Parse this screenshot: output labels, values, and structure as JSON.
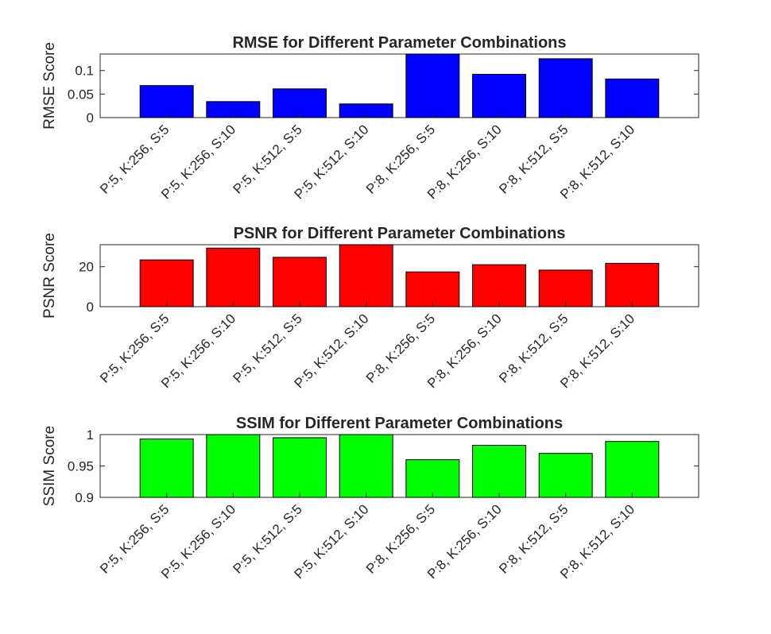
{
  "chart_data": [
    {
      "type": "bar",
      "title": "RMSE for Different Parameter Combinations",
      "xlabel": "",
      "ylabel": "RMSE Score",
      "categories": [
        "P:5, K:256, S:5",
        "P:5, K:256, S:10",
        "P:5, K:512, S:5",
        "P:5, K:512, S:10",
        "P:8, K:256, S:5",
        "P:8, K:256, S:10",
        "P:8, K:512, S:5",
        "P:8, K:512, S:10"
      ],
      "values": [
        0.068,
        0.034,
        0.061,
        0.029,
        0.135,
        0.092,
        0.125,
        0.082
      ],
      "ylim": [
        0,
        0.135
      ],
      "yticks": [
        0,
        0.05,
        0.1
      ],
      "ytick_labels": [
        "0",
        "0.05",
        "0.1"
      ],
      "color": "#0000ff"
    },
    {
      "type": "bar",
      "title": "PSNR for Different Parameter Combinations",
      "xlabel": "",
      "ylabel": "PSNR Score",
      "categories": [
        "P:5, K:256, S:5",
        "P:5, K:256, S:10",
        "P:5, K:512, S:5",
        "P:5, K:512, S:10",
        "P:8, K:256, S:5",
        "P:8, K:256, S:10",
        "P:8, K:512, S:5",
        "P:8, K:512, S:10"
      ],
      "values": [
        23.4,
        29.3,
        24.7,
        31,
        17.4,
        21,
        18.3,
        21.7
      ],
      "ylim": [
        0,
        31
      ],
      "yticks": [
        0,
        20
      ],
      "ytick_labels": [
        "0",
        "20"
      ],
      "color": "#ff0000"
    },
    {
      "type": "bar",
      "title": "SSIM for Different Parameter Combinations",
      "xlabel": "",
      "ylabel": "SSIM Score",
      "categories": [
        "P:5, K:256, S:5",
        "P:5, K:256, S:10",
        "P:5, K:512, S:5",
        "P:5, K:512, S:10",
        "P:8, K:256, S:5",
        "P:8, K:256, S:10",
        "P:8, K:512, S:5",
        "P:8, K:512, S:10"
      ],
      "values": [
        0.993,
        1.0,
        0.995,
        1.0,
        0.96,
        0.983,
        0.97,
        0.989
      ],
      "ylim": [
        0.9,
        1
      ],
      "yticks": [
        0.9,
        0.95,
        1
      ],
      "ytick_labels": [
        "0.9",
        "0.95",
        "1"
      ],
      "color": "#00ff00"
    }
  ]
}
